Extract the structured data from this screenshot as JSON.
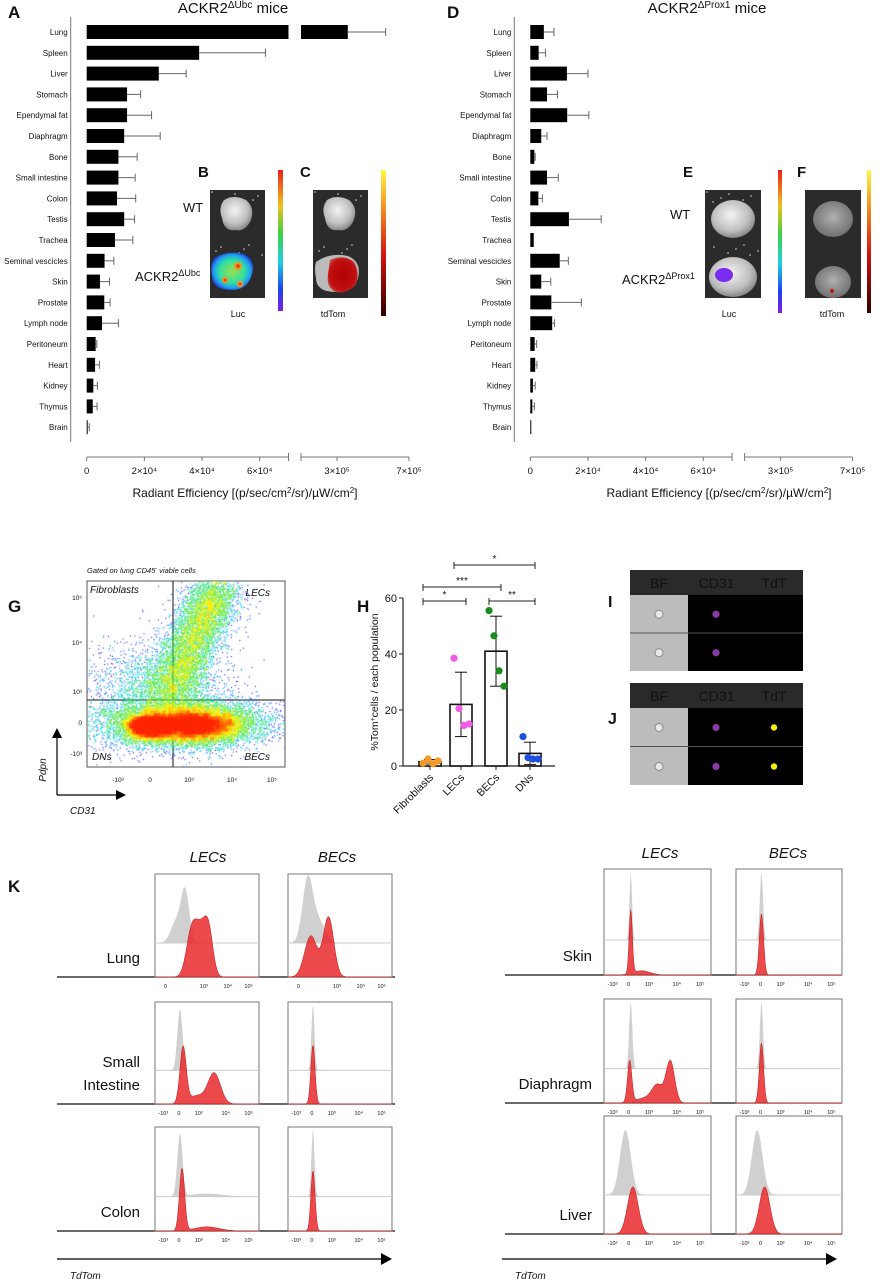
{
  "panel_letters": {
    "A": "A",
    "B": "B",
    "C": "C",
    "D": "D",
    "E": "E",
    "F": "F",
    "G": "G",
    "H": "H",
    "I": "I",
    "J": "J",
    "K": "K"
  },
  "chart_data": [
    {
      "id": "A",
      "type": "bar",
      "orientation": "horizontal",
      "title": {
        "main": "ACKR2",
        "sup": "ΔUbc",
        "suffix": " mice"
      },
      "xlabel": {
        "pre": "Radiant Efficiency [(p/sec/cm",
        "sup1": "2",
        "mid": "/sr)/µW/cm",
        "sup2": "2",
        "post": "]"
      },
      "axis_break": [
        70000,
        100000
      ],
      "xlim": [
        0,
        700000
      ],
      "xticks": [
        {
          "value": 0,
          "label": "0"
        },
        {
          "value": 20000,
          "label": "2×10⁴"
        },
        {
          "value": 40000,
          "label": "4×10⁴"
        },
        {
          "value": 60000,
          "label": "6×10⁴"
        },
        {
          "value": 300000,
          "label": "3×10⁵"
        },
        {
          "value": 700000,
          "label": "7×10⁵"
        }
      ],
      "categories": [
        "Lung",
        "Spleen",
        "Liver",
        "Stomach",
        "Ependymal fat",
        "Diaphragm",
        "Bone",
        "Small intestine",
        "Colon",
        "Testis",
        "Trachea",
        "Seminal vescicles",
        "Skin",
        "Prostate",
        "Lymph node",
        "Peritoneum",
        "Heart",
        "Kidney",
        "Thymus",
        "Brain"
      ],
      "values": [
        360000,
        39000,
        25000,
        14000,
        14000,
        13000,
        11000,
        11000,
        10500,
        13000,
        9800,
        6200,
        4600,
        6100,
        5300,
        3100,
        2900,
        2300,
        2100,
        300
      ],
      "errors": [
        210000,
        23000,
        9500,
        4700,
        8500,
        12500,
        6500,
        5800,
        6500,
        3600,
        6200,
        3200,
        3300,
        2000,
        5700,
        400,
        1500,
        1400,
        1500,
        600
      ],
      "bar_color": "#000000"
    },
    {
      "id": "D",
      "type": "bar",
      "orientation": "horizontal",
      "title": {
        "main": "ACKR2",
        "sup": "ΔProx1",
        "suffix": " mice"
      },
      "xlabel": {
        "pre": "Radiant Efficiency [(p/sec/cm",
        "sup1": "2",
        "mid": "/sr)/µW/cm",
        "sup2": "2",
        "post": "]"
      },
      "axis_break": [
        70000,
        100000
      ],
      "xlim": [
        0,
        700000
      ],
      "xticks": [
        {
          "value": 0,
          "label": "0"
        },
        {
          "value": 20000,
          "label": "2×10⁴"
        },
        {
          "value": 40000,
          "label": "4×10⁴"
        },
        {
          "value": 60000,
          "label": "6×10⁴"
        },
        {
          "value": 300000,
          "label": "3×10⁵"
        },
        {
          "value": 700000,
          "label": "7×10⁵"
        }
      ],
      "categories": [
        "Lung",
        "Spleen",
        "Liver",
        "Stomach",
        "Ependymal fat",
        "Diaphragm",
        "Bone",
        "Small intestine",
        "Colon",
        "Testis",
        "Trachea",
        "Seminal vescicles",
        "Skin",
        "Prostate",
        "Lymph node",
        "Peritoneum",
        "Heart",
        "Kidney",
        "Thymus",
        "Brain"
      ],
      "values": [
        4700,
        2900,
        12700,
        5800,
        12800,
        3800,
        1400,
        5800,
        2800,
        13400,
        1200,
        10200,
        3800,
        7300,
        7600,
        1500,
        1700,
        900,
        700,
        300
      ],
      "errors": [
        3500,
        2400,
        7300,
        3600,
        7500,
        2000,
        300,
        3900,
        1400,
        11200,
        0,
        3000,
        3300,
        10400,
        800,
        700,
        600,
        800,
        700,
        0
      ],
      "bar_color": "#000000"
    },
    {
      "id": "H",
      "type": "bar",
      "ylabel": {
        "pre": "%Tom",
        "sup": "+",
        "post": "cells / each population"
      },
      "ylim": [
        0,
        60
      ],
      "yticks": [
        "0",
        "20",
        "40",
        "60"
      ],
      "categories": [
        "Fibroblasts",
        "LECs",
        "BECs",
        "DNs"
      ],
      "values": [
        1.5,
        22,
        41,
        4.5
      ],
      "errors": [
        0.8,
        11.5,
        12.5,
        4
      ],
      "points": [
        [
          1.0,
          2.5,
          0.8,
          1.8
        ],
        [
          38.5,
          20.5,
          14.5,
          15.0
        ],
        [
          55.5,
          46.5,
          34.0,
          28.5
        ],
        [
          10.5,
          3.0,
          2.5,
          2.5
        ]
      ],
      "point_colors": [
        "#f39a2b",
        "#f25ae8",
        "#1a8a1a",
        "#1f4fe0"
      ],
      "significance": [
        {
          "from": "Fibroblasts",
          "to": "LECs",
          "label": "*"
        },
        {
          "from": "Fibroblasts",
          "to": "BECs",
          "label": "***"
        },
        {
          "from": "BECs",
          "to": "DNs",
          "label": "**"
        },
        {
          "from": "LECs",
          "to": "DNs",
          "label": "*"
        }
      ]
    }
  ],
  "imaging": {
    "B": {
      "wt": "WT",
      "ko_main": "ACKR2",
      "ko_sup": "ΔUbc",
      "caption": "Luc"
    },
    "C": {
      "caption": "tdTom"
    },
    "E": {
      "wt": "WT",
      "ko_main": "ACKR2",
      "ko_sup": "ΔProx1",
      "caption": "Luc"
    },
    "F": {
      "caption": "tdTom"
    }
  },
  "flow_G": {
    "gate_pre": "Gated on lung CD45",
    "gate_sup": "-",
    "gate_post": " viable cells",
    "quadrants": {
      "top_left": "Fibroblasts",
      "top_right": "LECs",
      "bottom_left": "DNs",
      "bottom_right": "BECs"
    },
    "y_axis": "Pdpn",
    "x_axis": "CD31",
    "yticks": [
      "10⁵",
      "10⁴",
      "10³",
      "0",
      "-10³"
    ],
    "xticks": [
      "-10³",
      "0",
      "10³",
      "10⁴",
      "10⁵"
    ]
  },
  "images_IJ": {
    "I": {
      "columns": [
        "BF",
        "CD31",
        "TdT"
      ],
      "tdt_positive": false
    },
    "J": {
      "columns": [
        "BF",
        "CD31",
        "TdT"
      ],
      "tdt_positive": true
    }
  },
  "histograms_K": {
    "columns": [
      "LECs",
      "BECs"
    ],
    "left_rows": [
      [
        "Lung"
      ],
      [
        "Small",
        "Intestine"
      ],
      [
        "Colon"
      ]
    ],
    "right_rows": [
      [
        "Skin"
      ],
      [
        "Diaphragm"
      ],
      [
        "Liver"
      ]
    ],
    "x_axis": "TdTom",
    "ticks_lung": [
      "0",
      "10³",
      "10⁴",
      "10⁵"
    ],
    "ticks_full": [
      "-10³",
      "0",
      "10³",
      "10⁴",
      "10⁵"
    ],
    "colors": {
      "control": "#c8c8c8",
      "tdtom": "#e8292c"
    }
  }
}
